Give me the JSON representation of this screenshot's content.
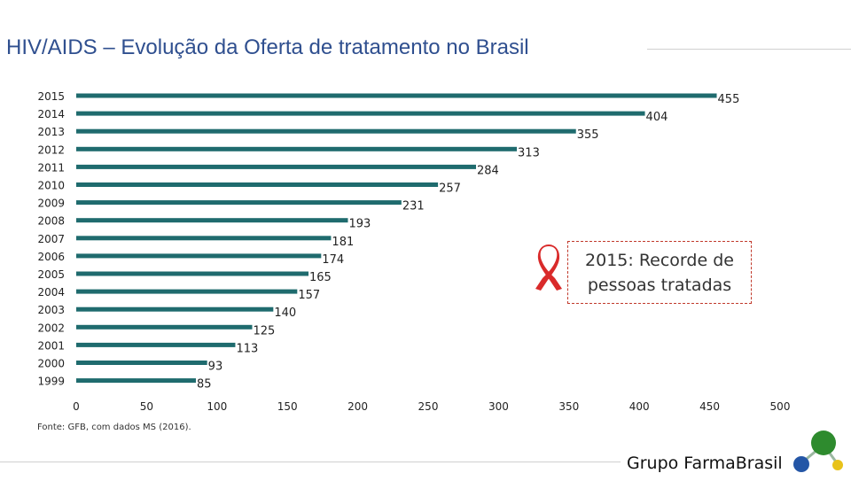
{
  "title": "HIV/AIDS – Evolução da Oferta de tratamento no Brasil",
  "chart_data": {
    "type": "bar",
    "orientation": "horizontal",
    "categories": [
      "2015",
      "2014",
      "2013",
      "2012",
      "2011",
      "2010",
      "2009",
      "2008",
      "2007",
      "2006",
      "2005",
      "2004",
      "2003",
      "2002",
      "2001",
      "2000",
      "1999"
    ],
    "values": [
      455,
      404,
      355,
      313,
      284,
      257,
      231,
      193,
      181,
      174,
      165,
      157,
      140,
      125,
      113,
      93,
      85
    ],
    "xlim": [
      0,
      500
    ],
    "xticks": [
      0,
      50,
      100,
      150,
      200,
      250,
      300,
      350,
      400,
      450,
      500
    ],
    "bar_color": "#1f6b6e",
    "title": "HIV/AIDS – Evolução da Oferta de tratamento no Brasil",
    "xlabel": "",
    "ylabel": ""
  },
  "callout": {
    "text": "2015: Recorde de pessoas tratadas",
    "ribbon_color": "#d92a2a",
    "border_color": "#c0392b"
  },
  "source": "Fonte: GFB, com dados MS (2016).",
  "brand": "Grupo FarmaBrasil",
  "logo_colors": {
    "top": "#2e8b2e",
    "left": "#2456a6",
    "right": "#e8c21a"
  }
}
